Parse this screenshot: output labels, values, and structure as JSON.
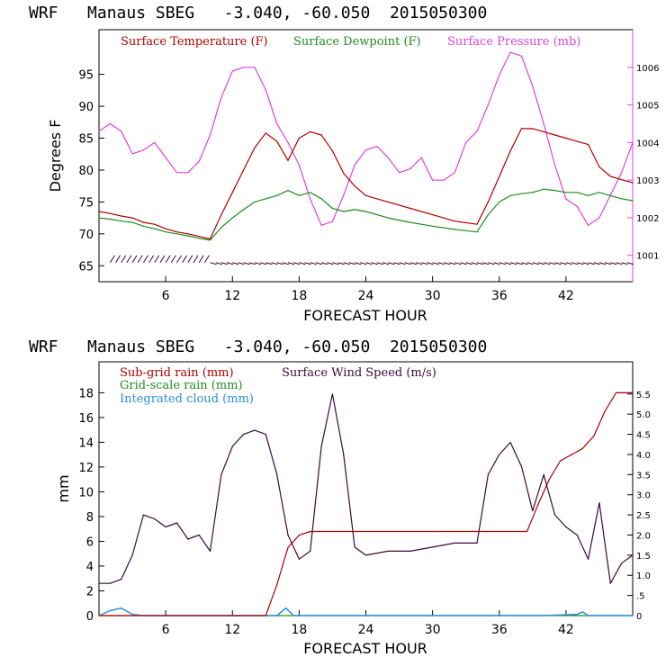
{
  "charts": {
    "top": {
      "title": "WRF   Manaus SBEG   -3.040, -60.050  2015050300",
      "legend": {
        "temperature": "Surface Temperature (F)",
        "dewpoint": "Surface Dewpoint (F)",
        "pressure": "Surface Pressure (mb)"
      },
      "ylabel": "Degrees F",
      "xlabel": "FORECAST HOUR",
      "xticks": [
        "6",
        "12",
        "18",
        "24",
        "30",
        "36",
        "42"
      ],
      "yticks_left": [
        "65",
        "70",
        "75",
        "80",
        "85",
        "90",
        "95"
      ],
      "yticks_right": [
        "1001",
        "1002",
        "1003",
        "1004",
        "1005",
        "1006"
      ]
    },
    "bottom": {
      "title": "WRF   Manaus SBEG   -3.040, -60.050  2015050300",
      "legend": {
        "subgrid": "Sub-grid rain (mm)",
        "wind": "Surface Wind Speed (m/s)",
        "gridscale": "Grid-scale rain (mm)",
        "cloud": "Integrated cloud (mm)"
      },
      "ylabel": "mm",
      "xlabel": "FORECAST HOUR",
      "xticks": [
        "6",
        "12",
        "18",
        "24",
        "30",
        "36",
        "42"
      ],
      "yticks_left": [
        "0",
        "2",
        "4",
        "6",
        "8",
        "10",
        "12",
        "14",
        "16",
        "18"
      ],
      "yticks_right": [
        "0",
        ".5",
        "1.0",
        "1.5",
        "2.0",
        "2.5",
        "3.0",
        "3.5",
        "4.0",
        "4.5",
        "5.0",
        "5.5"
      ]
    }
  },
  "colors": {
    "temperature": "#b00000",
    "dewpoint": "#1e8c1e",
    "pressure": "#e040e0",
    "wind": "#3a0a3a",
    "subgrid": "#b00000",
    "gridscale": "#1e8c1e",
    "cloud": "#2a8ee0"
  },
  "chart_data": [
    {
      "type": "line",
      "title": "WRF   Manaus SBEG   -3.040, -60.050  2015050300",
      "xlabel": "FORECAST HOUR",
      "ylabel": "Degrees F",
      "xlim": [
        0,
        48
      ],
      "ylim": [
        62.5,
        102
      ],
      "y2lim": [
        1000.3,
        1007.0
      ],
      "legend_position": "top",
      "grid": false,
      "series": [
        {
          "name": "Surface Temperature (F)",
          "axis": "left",
          "x": [
            0,
            1,
            2,
            3,
            4,
            5,
            6,
            7,
            8,
            9,
            10,
            11,
            12,
            13,
            14,
            15,
            16,
            17,
            18,
            19,
            20,
            21,
            22,
            23,
            24,
            26,
            28,
            30,
            32,
            34,
            35,
            36,
            37,
            38,
            39,
            40,
            41,
            42,
            43,
            44,
            45,
            46,
            47,
            48
          ],
          "y": [
            73.5,
            73.2,
            72.8,
            72.5,
            71.8,
            71.5,
            70.8,
            70.3,
            70.0,
            69.6,
            69.2,
            73.0,
            76.5,
            80.0,
            83.5,
            85.8,
            84.5,
            81.5,
            85.0,
            86.0,
            85.5,
            83.0,
            79.5,
            77.5,
            76.0,
            75.0,
            74.0,
            73.0,
            72.0,
            71.5,
            75.0,
            79.0,
            83.0,
            86.5,
            86.5,
            86.0,
            85.5,
            85.0,
            84.5,
            84.0,
            80.5,
            79.0,
            78.5,
            78.0
          ]
        },
        {
          "name": "Surface Dewpoint (F)",
          "axis": "left",
          "x": [
            0,
            1,
            2,
            3,
            4,
            5,
            6,
            7,
            8,
            9,
            10,
            11,
            12,
            13,
            14,
            15,
            16,
            17,
            18,
            19,
            20,
            21,
            22,
            23,
            24,
            26,
            28,
            30,
            32,
            34,
            35,
            36,
            37,
            38,
            39,
            40,
            41,
            42,
            43,
            44,
            45,
            46,
            47,
            48
          ],
          "y": [
            72.5,
            72.3,
            72.0,
            71.8,
            71.2,
            70.8,
            70.3,
            70.0,
            69.7,
            69.3,
            69.0,
            71.0,
            72.5,
            73.8,
            75.0,
            75.5,
            76.0,
            76.8,
            76.0,
            76.5,
            75.5,
            74.0,
            73.5,
            73.8,
            73.5,
            72.5,
            71.8,
            71.2,
            70.7,
            70.3,
            73.0,
            75.0,
            76.0,
            76.3,
            76.5,
            77.0,
            76.8,
            76.5,
            76.5,
            76.0,
            76.5,
            76.0,
            75.5,
            75.2
          ]
        },
        {
          "name": "Surface Pressure (mb)",
          "axis": "right",
          "x": [
            0,
            1,
            2,
            3,
            4,
            5,
            6,
            7,
            8,
            9,
            10,
            11,
            12,
            13,
            14,
            15,
            16,
            17,
            18,
            19,
            20,
            21,
            22,
            23,
            24,
            25,
            26,
            27,
            28,
            29,
            30,
            31,
            32,
            33,
            34,
            35,
            36,
            37,
            38,
            39,
            40,
            41,
            42,
            43,
            44,
            45,
            46,
            47,
            48
          ],
          "y": [
            1004.3,
            1004.5,
            1004.3,
            1003.7,
            1003.8,
            1004.0,
            1003.6,
            1003.2,
            1003.2,
            1003.5,
            1004.2,
            1005.2,
            1005.9,
            1006.0,
            1006.0,
            1005.4,
            1004.5,
            1004.0,
            1003.4,
            1002.5,
            1001.8,
            1001.9,
            1002.6,
            1003.4,
            1003.8,
            1003.9,
            1003.6,
            1003.2,
            1003.3,
            1003.6,
            1003.0,
            1003.0,
            1003.2,
            1004.0,
            1004.3,
            1005.0,
            1005.8,
            1006.4,
            1006.3,
            1005.5,
            1004.5,
            1003.4,
            1002.5,
            1002.3,
            1001.8,
            1002.0,
            1002.6,
            1003.2,
            1004.0
          ]
        }
      ]
    },
    {
      "type": "line",
      "title": "WRF   Manaus SBEG   -3.040, -60.050  2015050300",
      "xlabel": "FORECAST HOUR",
      "ylabel": "mm",
      "xlim": [
        0,
        48
      ],
      "ylim": [
        0,
        20.5
      ],
      "y2lim": [
        0,
        6.3
      ],
      "legend_position": "top",
      "grid": false,
      "series": [
        {
          "name": "Sub-grid rain (mm)",
          "axis": "left",
          "x": [
            0,
            15.0,
            16.0,
            17.0,
            18.0,
            19.0,
            24,
            30,
            36,
            38.5,
            39.5,
            40.5,
            41.5,
            42.5,
            43.5,
            44.5,
            45.5,
            46.5,
            48
          ],
          "y": [
            0,
            0,
            2.5,
            5.5,
            6.5,
            6.8,
            6.8,
            6.8,
            6.8,
            6.8,
            9.0,
            11.0,
            12.5,
            13.0,
            13.5,
            14.5,
            16.5,
            18.0,
            18.0
          ]
        },
        {
          "name": "Grid-scale rain (mm)",
          "axis": "left",
          "x": [
            0,
            48
          ],
          "y": [
            0,
            0
          ]
        },
        {
          "name": "Integrated cloud (mm)",
          "axis": "left",
          "x": [
            0,
            1,
            2,
            3,
            4,
            8,
            16,
            16.8,
            17.5,
            40,
            43,
            43.5,
            44,
            48
          ],
          "y": [
            0,
            0.4,
            0.6,
            0.1,
            0,
            0,
            0,
            0.6,
            0,
            0,
            0.1,
            0.3,
            0,
            0
          ]
        },
        {
          "name": "Surface Wind Speed (m/s)",
          "axis": "right",
          "x": [
            0,
            1,
            2,
            3,
            4,
            5,
            6,
            7,
            8,
            9,
            10,
            11,
            12,
            13,
            14,
            15,
            16,
            17,
            18,
            19,
            20,
            21,
            22,
            23,
            24,
            26,
            28,
            30,
            32,
            34,
            35,
            36,
            37,
            38,
            39,
            40,
            41,
            42,
            43,
            44,
            45,
            46,
            47,
            48
          ],
          "y": [
            0.8,
            0.8,
            0.9,
            1.5,
            2.5,
            2.4,
            2.2,
            2.3,
            1.9,
            2.0,
            1.6,
            3.5,
            4.2,
            4.5,
            4.6,
            4.5,
            3.5,
            2.0,
            1.4,
            1.6,
            4.2,
            5.5,
            4.0,
            1.7,
            1.5,
            1.6,
            1.6,
            1.7,
            1.8,
            1.8,
            3.5,
            4.0,
            4.3,
            3.7,
            2.6,
            3.5,
            2.5,
            2.2,
            2.0,
            1.4,
            2.8,
            0.8,
            1.3,
            1.5
          ]
        }
      ]
    }
  ]
}
